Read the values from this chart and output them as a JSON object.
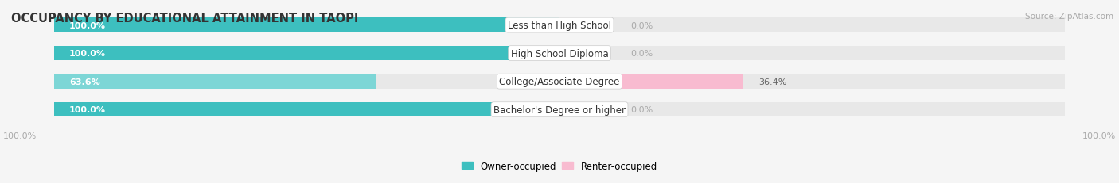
{
  "title": "OCCUPANCY BY EDUCATIONAL ATTAINMENT IN TAOPI",
  "source": "Source: ZipAtlas.com",
  "categories": [
    "Less than High School",
    "High School Diploma",
    "College/Associate Degree",
    "Bachelor's Degree or higher"
  ],
  "owner_values": [
    100.0,
    100.0,
    63.6,
    100.0
  ],
  "renter_values": [
    0.0,
    0.0,
    36.4,
    0.0
  ],
  "owner_color_full": "#3dbfbf",
  "owner_color_partial": "#7dd6d6",
  "renter_color_full": "#f06292",
  "renter_color_partial": "#f8bbd0",
  "bar_bg_color": "#e8e8e8",
  "bg_color": "#f5f5f5",
  "title_fontsize": 10.5,
  "label_fontsize": 8.5,
  "value_fontsize": 8,
  "source_fontsize": 7.5,
  "legend_fontsize": 8.5,
  "owner_label": "Owner-occupied",
  "renter_label": "Renter-occupied"
}
